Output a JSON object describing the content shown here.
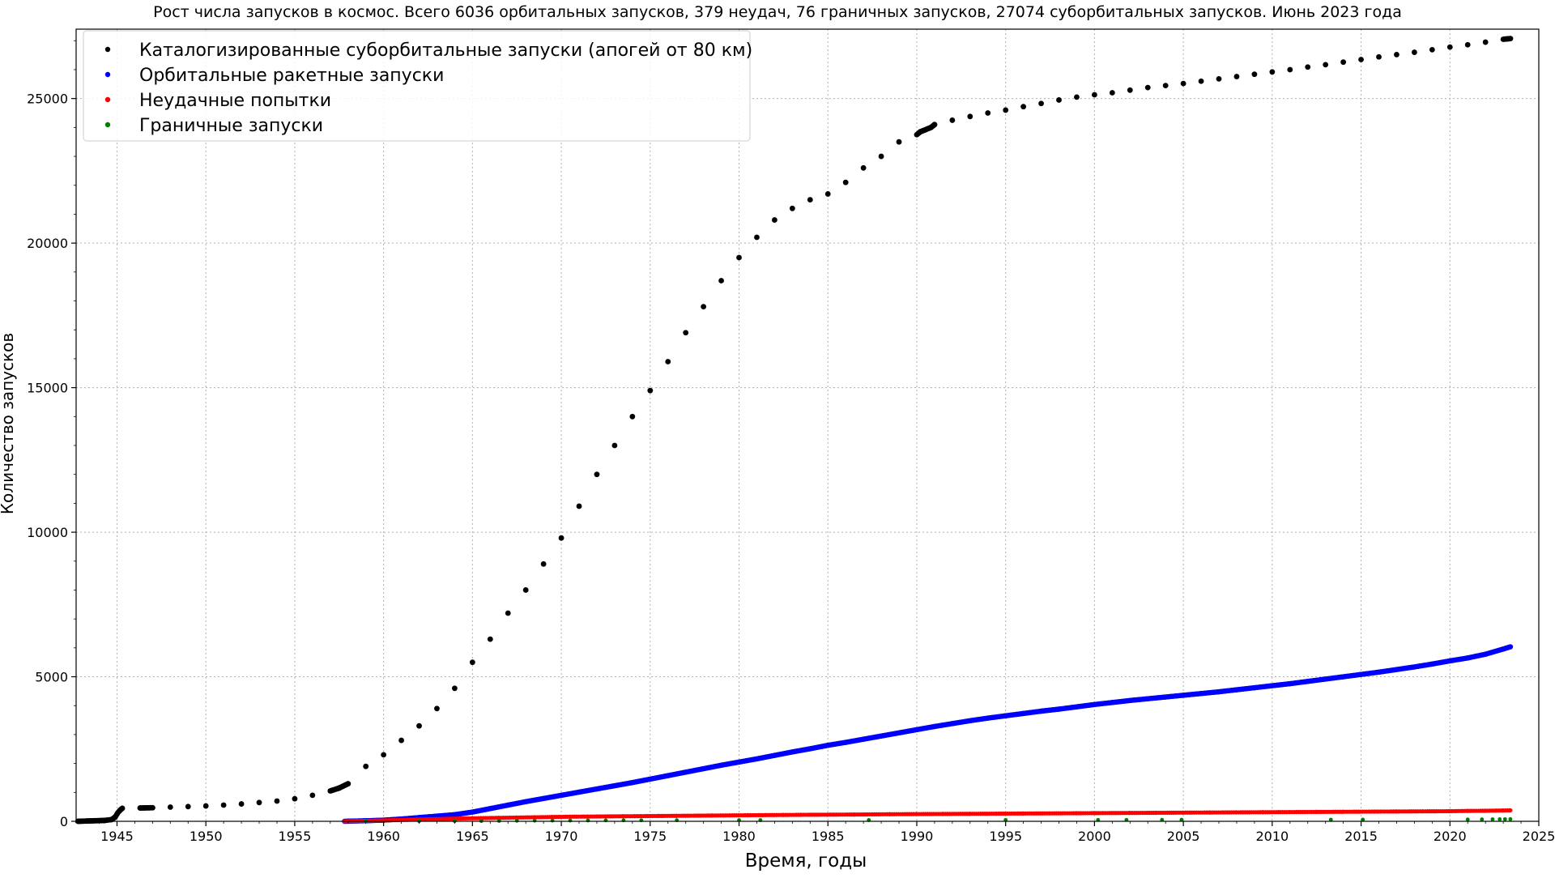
{
  "chart_data": {
    "type": "scatter",
    "title": "Рост числа запусков в космос. Всего 6036 орбитальных запусков, 379 неудач, 76 граничных запусков, 27074 суборбитальных запусков. Июнь 2023 года",
    "xlabel": "Время, годы",
    "ylabel": "Количество запусков",
    "xlim": [
      1942.7,
      2025.0
    ],
    "ylim": [
      0,
      27400
    ],
    "x_ticks": [
      1945,
      1950,
      1955,
      1960,
      1965,
      1970,
      1975,
      1980,
      1985,
      1990,
      1995,
      2000,
      2005,
      2010,
      2015,
      2020,
      2025
    ],
    "y_ticks": [
      0,
      5000,
      10000,
      15000,
      20000,
      25000
    ],
    "grid": true,
    "legend_placement": "top-left",
    "series": [
      {
        "name": "Каталогизированные суборбитальные запуски (апогей от 80 км)",
        "color": "#000000",
        "x": [
          1942.8,
          1943.3,
          1943.8,
          1944.3,
          1944.7,
          1944.9,
          1945.05,
          1945.2,
          1945.3,
          1946.3,
          1947.0,
          1948.0,
          1949.0,
          1950.0,
          1951.0,
          1952.0,
          1953.0,
          1954.0,
          1955.0,
          1956.0,
          1957.0,
          1957.5,
          1958.0,
          1959.0,
          1960.0,
          1961.0,
          1962.0,
          1963.0,
          1964.0,
          1965.0,
          1966.0,
          1967.0,
          1968.0,
          1969.0,
          1970.0,
          1971.0,
          1972.0,
          1973.0,
          1974.0,
          1975.0,
          1976.0,
          1977.0,
          1978.0,
          1979.0,
          1980.0,
          1981.0,
          1982.0,
          1983.0,
          1984.0,
          1985.0,
          1986.0,
          1987.0,
          1988.0,
          1989.0,
          1990.0,
          1990.2,
          1990.8,
          1991.0,
          1992.0,
          1993.0,
          1994.0,
          1995.0,
          1996.0,
          1997.0,
          1998.0,
          1999.0,
          2000.0,
          2001.0,
          2002.0,
          2003.0,
          2004.0,
          2005.0,
          2006.0,
          2007.0,
          2008.0,
          2009.0,
          2010.0,
          2011.0,
          2012.0,
          2013.0,
          2014.0,
          2015.0,
          2016.0,
          2017.0,
          2018.0,
          2019.0,
          2020.0,
          2021.0,
          2022.0,
          2023.0,
          2023.4
        ],
        "y": [
          0,
          10,
          20,
          30,
          60,
          150,
          300,
          400,
          450,
          460,
          470,
          490,
          510,
          530,
          560,
          600,
          650,
          700,
          780,
          900,
          1050,
          1150,
          1300,
          1900,
          2300,
          2800,
          3300,
          3900,
          4600,
          5500,
          6300,
          7200,
          8000,
          8900,
          9800,
          10900,
          12000,
          13000,
          14000,
          14900,
          15900,
          16900,
          17800,
          18700,
          19500,
          20200,
          20800,
          21200,
          21500,
          21700,
          22100,
          22600,
          23000,
          23500,
          23750,
          23850,
          24000,
          24100,
          24250,
          24380,
          24500,
          24600,
          24720,
          24830,
          24950,
          25050,
          25130,
          25200,
          25290,
          25380,
          25450,
          25520,
          25600,
          25680,
          25760,
          25840,
          25920,
          26000,
          26090,
          26170,
          26260,
          26350,
          26440,
          26520,
          26600,
          26690,
          26780,
          26860,
          26950,
          27050,
          27074
        ]
      },
      {
        "name": "Орбитальные ракетные запуски",
        "color": "#0000ff",
        "x": [
          1957.8,
          1958.0,
          1959.0,
          1960.0,
          1961.0,
          1962.0,
          1963.0,
          1964.0,
          1965.0,
          1966.0,
          1967.0,
          1968.0,
          1969.0,
          1970.0,
          1971.0,
          1972.0,
          1973.0,
          1974.0,
          1975.0,
          1976.0,
          1977.0,
          1978.0,
          1979.0,
          1980.0,
          1981.0,
          1982.0,
          1983.0,
          1984.0,
          1985.0,
          1986.0,
          1987.0,
          1988.0,
          1989.0,
          1990.0,
          1991.0,
          1992.0,
          1993.0,
          1994.0,
          1995.0,
          1996.0,
          1997.0,
          1998.0,
          1999.0,
          2000.0,
          2001.0,
          2002.0,
          2003.0,
          2004.0,
          2005.0,
          2006.0,
          2007.0,
          2008.0,
          2009.0,
          2010.0,
          2011.0,
          2012.0,
          2013.0,
          2014.0,
          2015.0,
          2016.0,
          2017.0,
          2018.0,
          2019.0,
          2020.0,
          2021.0,
          2022.0,
          2023.0,
          2023.4
        ],
        "y": [
          0,
          5,
          20,
          40,
          80,
          130,
          180,
          230,
          320,
          440,
          560,
          680,
          790,
          900,
          1010,
          1120,
          1230,
          1340,
          1460,
          1580,
          1700,
          1820,
          1940,
          2050,
          2160,
          2280,
          2400,
          2510,
          2630,
          2730,
          2840,
          2950,
          3060,
          3170,
          3280,
          3380,
          3480,
          3570,
          3650,
          3730,
          3810,
          3880,
          3960,
          4040,
          4110,
          4180,
          4240,
          4300,
          4360,
          4420,
          4480,
          4550,
          4620,
          4690,
          4760,
          4840,
          4920,
          5000,
          5080,
          5160,
          5250,
          5340,
          5440,
          5550,
          5650,
          5780,
          5960,
          6036
        ]
      },
      {
        "name": "Неудачные попытки",
        "color": "#ff0000",
        "x": [
          1957.8,
          1958.5,
          1959.5,
          1960.5,
          1961.5,
          1962.5,
          1963.5,
          1964.5,
          1965.5,
          1966.5,
          1967.5,
          1968.5,
          1969.5,
          1970.5,
          1971.5,
          1972.5,
          1973.5,
          1974.5,
          1975.5,
          1976.5,
          1977.5,
          1978.5,
          1979.5,
          1980.5,
          1981.5,
          1982.5,
          1983.5,
          1985.0,
          1986.5,
          1987.5,
          1988.5,
          1990.0,
          1991.5,
          1993.0,
          1994.5,
          1996.0,
          1997.5,
          1999.0,
          2000.5,
          2002.0,
          2003.5,
          2005.0,
          2006.5,
          2008.0,
          2009.5,
          2011.0,
          2012.5,
          2014.0,
          2015.5,
          2017.0,
          2018.5,
          2020.0,
          2021.0,
          2022.0,
          2023.0,
          2023.4
        ],
        "y": [
          0,
          10,
          25,
          40,
          55,
          70,
          85,
          100,
          110,
          120,
          130,
          140,
          150,
          160,
          165,
          170,
          175,
          180,
          185,
          190,
          195,
          200,
          205,
          210,
          215,
          220,
          225,
          230,
          235,
          240,
          245,
          250,
          255,
          260,
          265,
          270,
          275,
          280,
          285,
          290,
          295,
          300,
          305,
          310,
          315,
          320,
          325,
          330,
          335,
          340,
          345,
          350,
          360,
          365,
          375,
          379
        ]
      },
      {
        "name": "Граничные запуски",
        "color": "#008000",
        "x": [
          1959.0,
          1962.0,
          1964.0,
          1965.5,
          1966.5,
          1967.5,
          1968.5,
          1969.5,
          1970.5,
          1971.5,
          1972.5,
          1973.5,
          1974.5,
          1976.5,
          1980.0,
          1981.2,
          1987.3,
          1995.0,
          2000.2,
          2001.8,
          2003.8,
          2004.9,
          2013.3,
          2015.1,
          2021.0,
          2021.8,
          2022.4,
          2022.8,
          2023.1,
          2023.4
        ],
        "y": [
          2,
          5,
          8,
          10,
          14,
          18,
          22,
          25,
          28,
          30,
          32,
          34,
          36,
          38,
          40,
          42,
          44,
          46,
          48,
          50,
          52,
          54,
          56,
          58,
          64,
          67,
          70,
          72,
          74,
          76
        ]
      }
    ]
  }
}
